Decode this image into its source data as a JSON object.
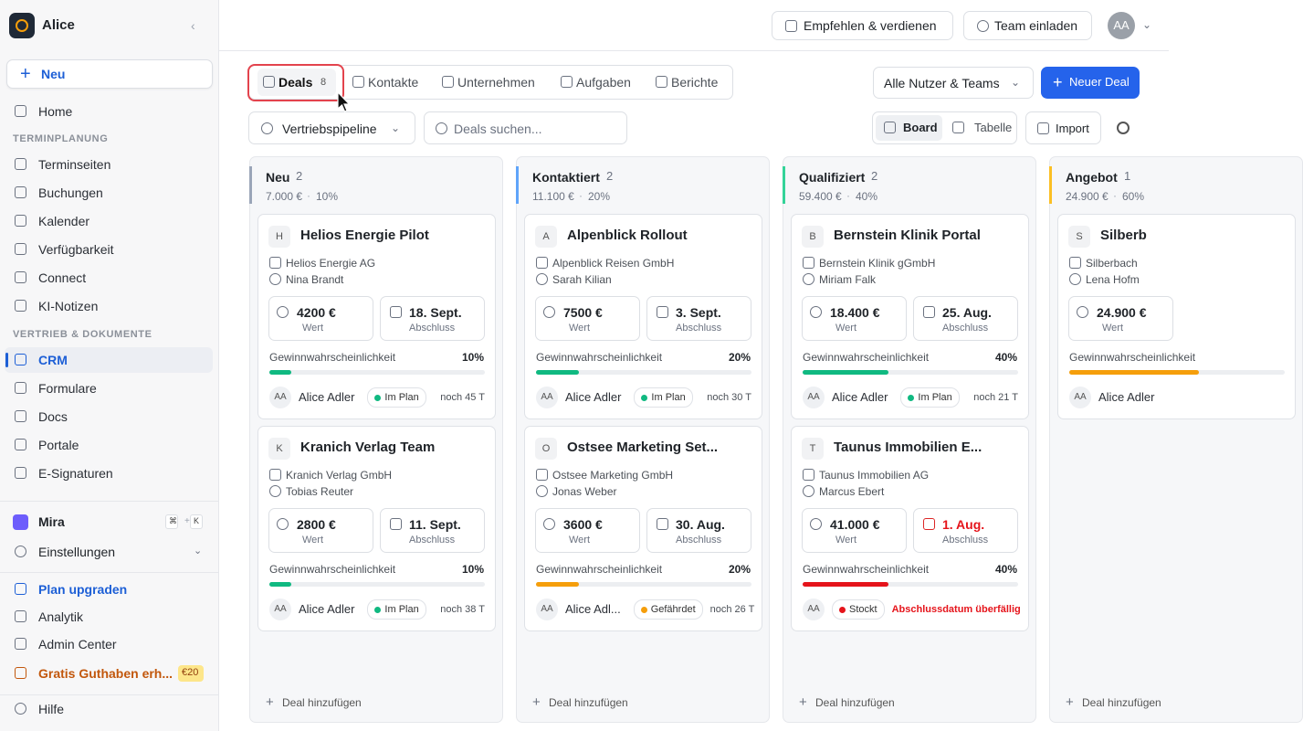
{
  "sidebar": {
    "workspace": "Alice",
    "new_button": "Neu",
    "items": [
      {
        "label": "Home"
      },
      {
        "section": "TERMINPLANUNG"
      },
      {
        "label": "Terminseiten"
      },
      {
        "label": "Buchungen"
      },
      {
        "label": "Kalender"
      },
      {
        "label": "Verfügbarkeit"
      },
      {
        "label": "Connect"
      },
      {
        "label": "KI-Notizen"
      },
      {
        "section": "VERTRIEB & DOKUMENTE"
      },
      {
        "label": "CRM",
        "active": true
      },
      {
        "label": "Formulare"
      },
      {
        "label": "Docs"
      },
      {
        "label": "Portale"
      },
      {
        "label": "E-Signaturen"
      }
    ],
    "mira": {
      "label": "Mira",
      "shortcut": [
        "⌘",
        "+",
        "K"
      ]
    },
    "settings": "Einstellungen",
    "bottom": [
      {
        "label": "Plan upgraden",
        "color": "#1d5fd6"
      },
      {
        "label": "Analytik"
      },
      {
        "label": "Admin Center"
      },
      {
        "label": "Gratis Guthaben erh...",
        "color": "#c2570c",
        "badge": "€20"
      },
      {
        "label": "Hilfe"
      }
    ]
  },
  "topbar": {
    "refer": "Empfehlen & verdienen",
    "invite": "Team einladen",
    "avatar": "AA"
  },
  "toolbar": {
    "tabs": [
      {
        "label": "Deals",
        "count": 8
      },
      {
        "label": "Kontakte"
      },
      {
        "label": "Unternehmen"
      },
      {
        "label": "Aufgaben"
      },
      {
        "label": "Berichte"
      }
    ],
    "team_filter": "Alle Nutzer & Teams",
    "new_deal": "Neuer Deal",
    "pipeline": "Vertriebspipeline",
    "search_placeholder": "Deals suchen...",
    "views": [
      "Board",
      "Tabelle"
    ],
    "import": "Import"
  },
  "board": {
    "separator": "·",
    "value_label": "Wert",
    "date_label": "Abschluss",
    "probability_label": "Gewinnwahrscheinlichkeit",
    "add_deal": "Deal hinzufügen",
    "columns": [
      {
        "name": "Neu",
        "count": 2,
        "total": "7.000 €",
        "rate": "10%",
        "color": "#9aa5b8",
        "cards": [
          {
            "initial": "H",
            "title": "Helios Energie Pilot",
            "company": "Helios Energie AG",
            "contact": "Nina Brandt",
            "value": "4200 €",
            "date": "18. Sept.",
            "probability": {
              "value": 10,
              "label": "10%"
            },
            "owner_initials": "AA",
            "owner": "Alice Adler",
            "status": "Im Plan",
            "status_color": "#10b981",
            "remaining": "noch 45 T"
          },
          {
            "initial": "K",
            "title": "Kranich Verlag Team",
            "company": "Kranich Verlag GmbH",
            "contact": "Tobias Reuter",
            "value": "2800 €",
            "date": "11. Sept.",
            "probability": {
              "value": 10,
              "label": "10%"
            },
            "owner_initials": "AA",
            "owner": "Alice Adler",
            "status": "Im Plan",
            "status_color": "#10b981",
            "remaining": "noch 38 T"
          }
        ]
      },
      {
        "name": "Kontaktiert",
        "count": 2,
        "total": "11.100 €",
        "rate": "20%",
        "color": "#60a5fa",
        "cards": [
          {
            "initial": "A",
            "title": "Alpenblick Rollout",
            "company": "Alpenblick Reisen GmbH",
            "contact": "Sarah Kilian",
            "value": "7500 €",
            "date": "3. Sept.",
            "probability": {
              "value": 20,
              "label": "20%"
            },
            "owner_initials": "AA",
            "owner": "Alice Adler",
            "status": "Im Plan",
            "status_color": "#10b981",
            "remaining": "noch 30 T"
          },
          {
            "initial": "O",
            "title": "Ostsee Marketing Set...",
            "company": "Ostsee Marketing GmbH",
            "contact": "Jonas Weber",
            "value": "3600 €",
            "date": "30. Aug.",
            "probability": {
              "value": 20,
              "label": "20%"
            },
            "owner_initials": "AA",
            "owner": "Alice Adl...",
            "status": "Gefährdet",
            "status_color": "#f59e0b",
            "remaining": "noch 26 T"
          }
        ]
      },
      {
        "name": "Qualifiziert",
        "count": 2,
        "total": "59.400 €",
        "rate": "40%",
        "color": "#34d399",
        "cards": [
          {
            "initial": "B",
            "title": "Bernstein Klinik Portal",
            "company": "Bernstein Klinik gGmbH",
            "contact": "Miriam Falk",
            "value": "18.400 €",
            "date": "25. Aug.",
            "probability": {
              "value": 40,
              "label": "40%"
            },
            "owner_initials": "AA",
            "owner": "Alice Adler",
            "status": "Im Plan",
            "status_color": "#10b981",
            "remaining": "noch 21 T"
          },
          {
            "initial": "T",
            "title": "Taunus Immobilien E...",
            "company": "Taunus Immobilien AG",
            "contact": "Marcus Ebert",
            "value": "41.000 €",
            "date": "1. Aug.",
            "overdue": true,
            "probability": {
              "value": 40,
              "label": "40%"
            },
            "owner_initials": "AA",
            "status": "Stockt",
            "status_color": "#e5141b",
            "remaining": "Abschlussdatum überfällig"
          }
        ]
      },
      {
        "name": "Angebot",
        "count": 1,
        "total": "24.900 €",
        "rate": "60%",
        "color": "#fbbf24",
        "cards": [
          {
            "initial": "S",
            "title": "Silberb",
            "company": "Silberbach",
            "contact": "Lena Hofm",
            "value": "24.900 €",
            "probability": {
              "value": 60
            },
            "bar_color": "#f59e0b",
            "owner_initials": "AA",
            "owner": "Alice Adler"
          }
        ]
      }
    ]
  }
}
